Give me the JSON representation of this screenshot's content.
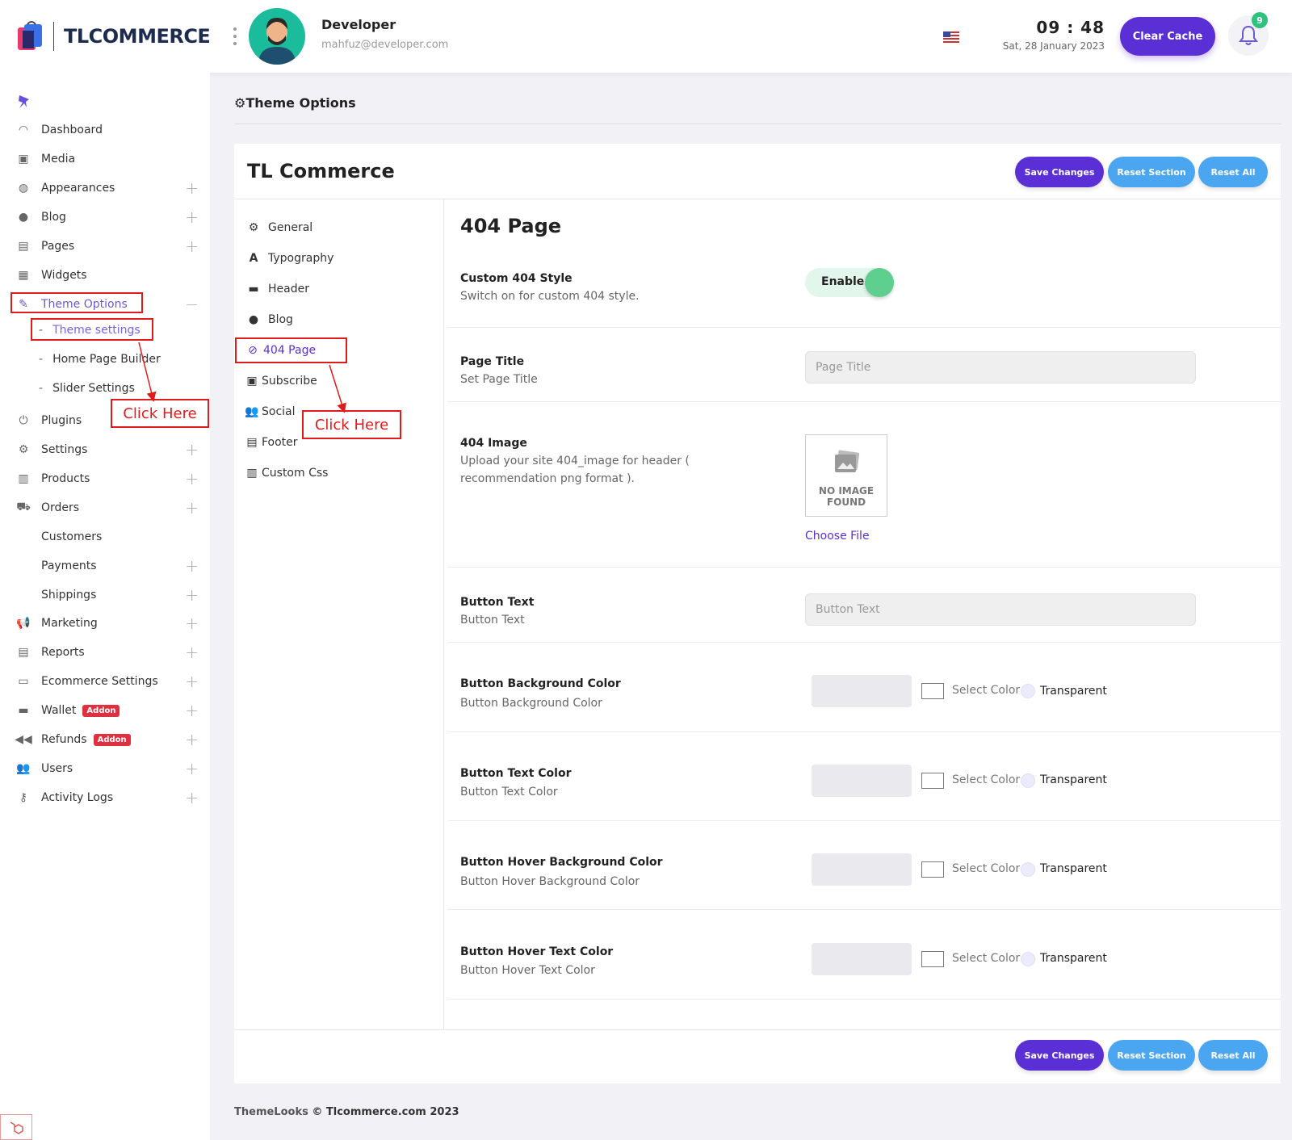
{
  "header": {
    "logo_text": "TLCOMMERCE",
    "user_name": "Developer",
    "user_email": "mahfuz@developer.com",
    "flag_icon": "us-flag-icon",
    "time": "09 : 48",
    "date": "Sat, 28 January 2023",
    "clear_cache_label": "Clear Cache",
    "notification_count": "9"
  },
  "sidebar": {
    "items": [
      {
        "label": "Dashboard",
        "icon": "gauge-icon"
      },
      {
        "label": "Media",
        "icon": "media-icon"
      },
      {
        "label": "Appearances",
        "icon": "appearance-icon"
      },
      {
        "label": "Blog",
        "icon": "blog-icon"
      },
      {
        "label": "Pages",
        "icon": "pages-icon"
      },
      {
        "label": "Widgets",
        "icon": "widgets-icon"
      },
      {
        "label": "Theme Options",
        "icon": "paint-brush-icon"
      },
      {
        "label": "Plugins",
        "icon": "plugin-icon"
      },
      {
        "label": "Settings",
        "icon": "gears-icon"
      },
      {
        "label": "Products",
        "icon": "products-icon"
      },
      {
        "label": "Orders",
        "icon": "cart-icon"
      },
      {
        "label": "Customers"
      },
      {
        "label": "Payments"
      },
      {
        "label": "Shippings"
      },
      {
        "label": "Marketing",
        "icon": "megaphone-icon"
      },
      {
        "label": "Reports",
        "icon": "reports-icon"
      },
      {
        "label": "Ecommerce Settings",
        "icon": "window-icon"
      },
      {
        "label": "Wallet",
        "icon": "wallet-icon",
        "badge": "Addon"
      },
      {
        "label": "Refunds",
        "icon": "rewind-icon",
        "badge": "Addon"
      },
      {
        "label": "Users",
        "icon": "users-icon"
      },
      {
        "label": "Activity Logs",
        "icon": "key-icon"
      }
    ],
    "theme_submenu": [
      "Theme settings",
      "Home Page Builder",
      "Slider Settings"
    ],
    "annotation": "Click Here"
  },
  "page": {
    "breadcrumb": "Theme Options",
    "card_title": "TL Commerce",
    "save_label": "Save Changes",
    "reset_section_label": "Reset Section",
    "reset_all_label": "Reset All",
    "tabs": [
      {
        "label": "General",
        "icon": "gears-icon"
      },
      {
        "label": "Typography",
        "icon": "typography-icon"
      },
      {
        "label": "Header",
        "icon": "header-icon"
      },
      {
        "label": "Blog",
        "icon": "blog-icon"
      },
      {
        "label": "404 Page",
        "icon": "ban-icon"
      },
      {
        "label": "Subscribe",
        "icon": "subscribe-icon"
      },
      {
        "label": "Social",
        "icon": "users-icon"
      },
      {
        "label": "Footer",
        "icon": "footer-icon"
      },
      {
        "label": "Custom Css",
        "icon": "css-file-icon"
      }
    ],
    "annotation": "Click Here",
    "section_title": "404 Page",
    "custom_style": {
      "label": "Custom 404 Style",
      "desc": "Switch on for custom 404 style.",
      "toggle_label": "Enable"
    },
    "page_title": {
      "label": "Page Title",
      "desc": "Set Page Title",
      "placeholder": "Page Title"
    },
    "image": {
      "label": "404 Image",
      "desc": "Upload your site 404_image for header ( recommendation png format ).",
      "no_image": "NO IMAGE FOUND",
      "choose": "Choose File"
    },
    "button_text": {
      "label": "Button Text",
      "desc": "Button Text",
      "placeholder": "Button Text"
    },
    "colors": [
      {
        "label": "Button Background Color",
        "desc": "Button Background Color"
      },
      {
        "label": "Button Text Color",
        "desc": "Button Text Color"
      },
      {
        "label": "Button Hover Background Color",
        "desc": "Button Hover Background Color"
      },
      {
        "label": "Button Hover Text Color",
        "desc": "Button Hover Text Color"
      }
    ],
    "select_color_label": "Select Color",
    "transparent_label": "Transparent"
  },
  "footer": {
    "brand": "ThemeLooks",
    "copyright": "© Tlcommerce.com 2023"
  },
  "colors": {
    "accent": "#5a2fd6",
    "reset": "#4aa6f0",
    "annotation": "#e01b1b"
  }
}
